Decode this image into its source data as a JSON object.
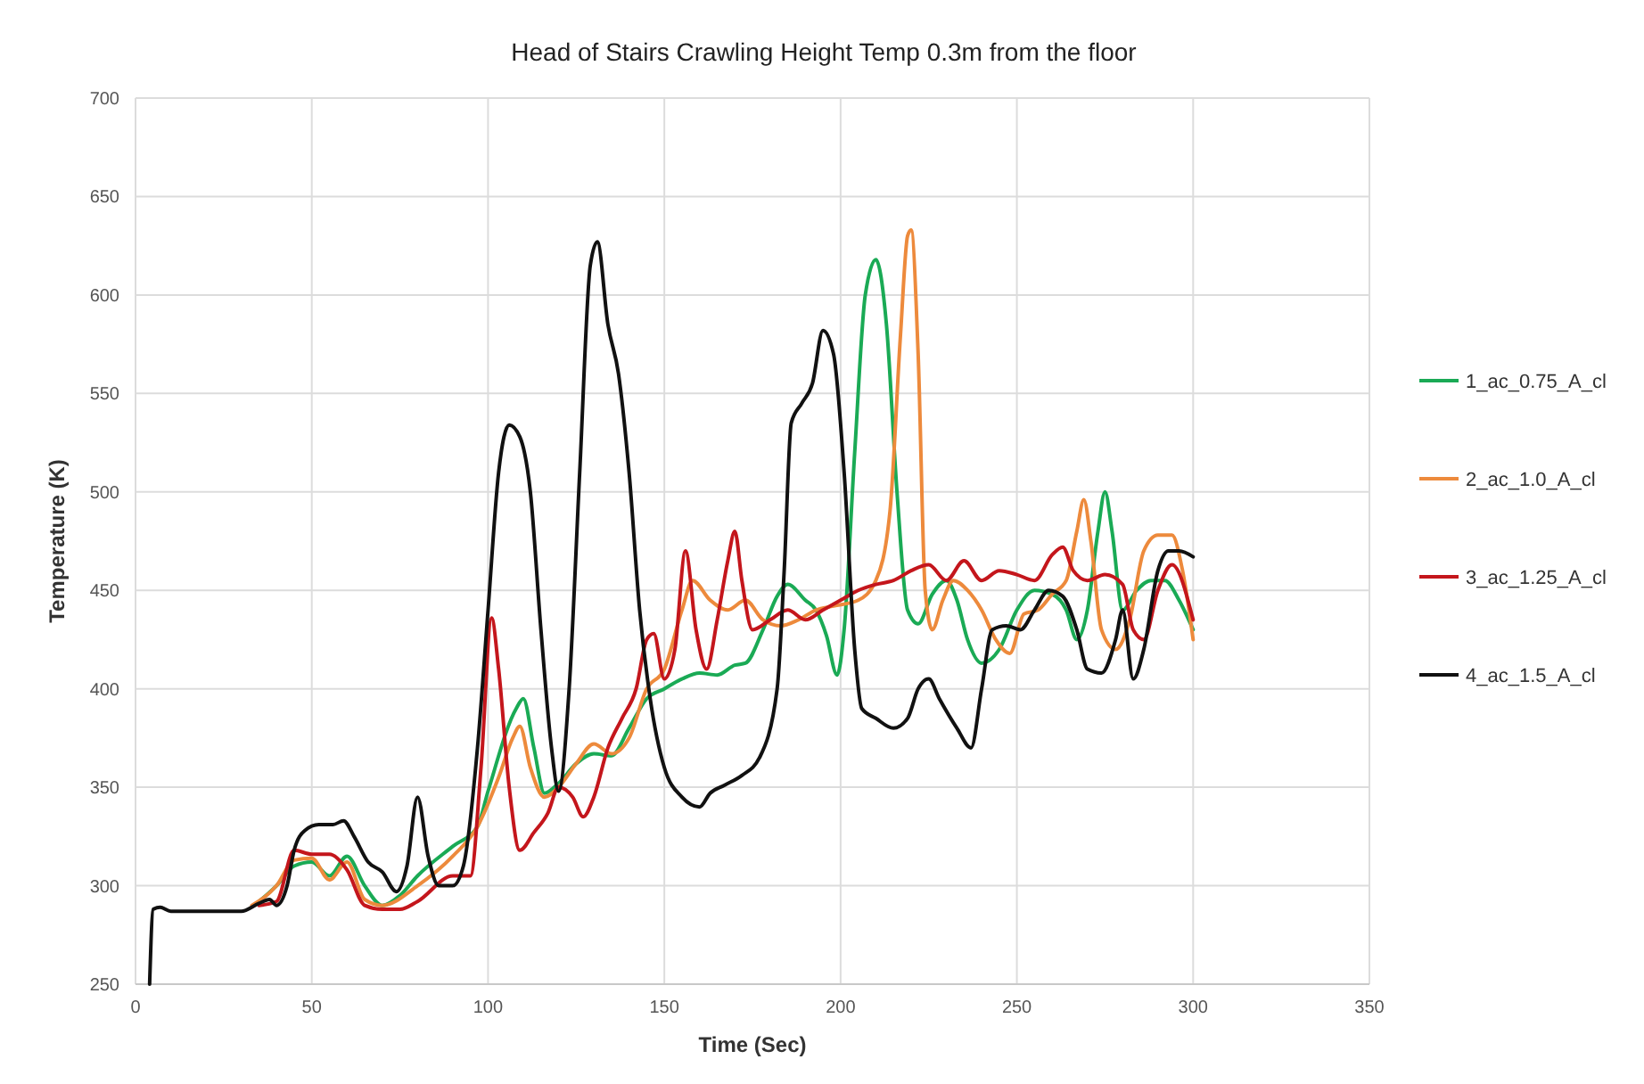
{
  "chart_data": {
    "type": "line",
    "title": "Head of Stairs Crawling Height Temp 0.3m from the floor",
    "xlabel": "Time (Sec)",
    "ylabel": "Temperature (K)",
    "xlim": [
      0,
      350
    ],
    "xticks": [
      0,
      50,
      100,
      150,
      200,
      250,
      300,
      350
    ],
    "ylim": [
      250,
      700
    ],
    "yticks": [
      250,
      300,
      350,
      400,
      450,
      500,
      550,
      600,
      650,
      700
    ],
    "grid": true,
    "legend": "right",
    "marker": "none",
    "line_style": "solid",
    "series": [
      {
        "name": "1_ac_0.75_A_cl",
        "color": "#1aaa55",
        "x": [
          35,
          40,
          45,
          50,
          55,
          60,
          65,
          70,
          75,
          80,
          90,
          97,
          100,
          108,
          110,
          113,
          116,
          120,
          125,
          130,
          135,
          140,
          145,
          150,
          155,
          160,
          165,
          170,
          173,
          178,
          182,
          185,
          190,
          193,
          196,
          199,
          201,
          204,
          207,
          210,
          213,
          216,
          219,
          222,
          226,
          230,
          233,
          236,
          240,
          245,
          250,
          255,
          260,
          264,
          267,
          270,
          273,
          275,
          277,
          280,
          284,
          288,
          292,
          296,
          300
        ],
        "values": [
          292,
          300,
          310,
          312,
          305,
          315,
          300,
          290,
          295,
          305,
          320,
          330,
          348,
          390,
          395,
          370,
          347,
          352,
          362,
          367,
          366,
          380,
          395,
          400,
          405,
          408,
          407,
          412,
          413,
          430,
          447,
          453,
          445,
          440,
          427,
          407,
          430,
          520,
          600,
          618,
          585,
          500,
          440,
          433,
          448,
          455,
          445,
          425,
          413,
          420,
          440,
          450,
          448,
          440,
          425,
          440,
          480,
          500,
          480,
          440,
          450,
          455,
          455,
          445,
          430
        ]
      },
      {
        "name": "2_ac_1.0_A_cl",
        "color": "#ed8a3c",
        "x": [
          33,
          40,
          45,
          50,
          55,
          60,
          65,
          70,
          80,
          90,
          97,
          103,
          107,
          109,
          112,
          116,
          120,
          125,
          130,
          135,
          140,
          145,
          150,
          155,
          158,
          163,
          168,
          173,
          178,
          183,
          188,
          193,
          198,
          205,
          210,
          214,
          217,
          219,
          220,
          222,
          224,
          226,
          229,
          232,
          236,
          240,
          244,
          248,
          252,
          256,
          260,
          264,
          267,
          269,
          271,
          274,
          278,
          282,
          286,
          290,
          294,
          297,
          300
        ],
        "values": [
          290,
          300,
          313,
          314,
          303,
          312,
          293,
          290,
          300,
          315,
          330,
          355,
          375,
          381,
          360,
          345,
          350,
          362,
          372,
          367,
          375,
          400,
          410,
          440,
          455,
          445,
          440,
          445,
          435,
          432,
          435,
          440,
          442,
          445,
          455,
          490,
          580,
          630,
          633,
          570,
          450,
          430,
          445,
          455,
          450,
          440,
          425,
          418,
          438,
          440,
          448,
          455,
          480,
          496,
          475,
          430,
          420,
          435,
          470,
          478,
          478,
          460,
          425
        ]
      },
      {
        "name": "3_ac_1.25_A_cl",
        "color": "#c4161c",
        "x": [
          35,
          40,
          45,
          50,
          55,
          60,
          65,
          70,
          75,
          80,
          90,
          95,
          98,
          101,
          103,
          106,
          109,
          113,
          117,
          120,
          124,
          127,
          130,
          134,
          138,
          142,
          145,
          147,
          150,
          153,
          156,
          159,
          162,
          165,
          168,
          170,
          172,
          175,
          180,
          185,
          190,
          195,
          200,
          205,
          210,
          215,
          220,
          225,
          230,
          235,
          240,
          245,
          250,
          255,
          260,
          263,
          266,
          270,
          275,
          280,
          283,
          286,
          290,
          294,
          300
        ],
        "values": [
          290,
          292,
          318,
          316,
          316,
          308,
          290,
          288,
          288,
          292,
          305,
          305,
          360,
          436,
          410,
          350,
          318,
          327,
          337,
          350,
          345,
          335,
          345,
          370,
          385,
          400,
          425,
          428,
          405,
          420,
          470,
          430,
          410,
          435,
          465,
          480,
          455,
          430,
          435,
          440,
          435,
          440,
          445,
          450,
          453,
          455,
          460,
          463,
          455,
          465,
          455,
          460,
          458,
          455,
          468,
          472,
          460,
          455,
          458,
          453,
          430,
          425,
          450,
          463,
          435
        ]
      },
      {
        "name": "4_ac_1.5_A_cl",
        "color": "#111111",
        "x": [
          4,
          5,
          7,
          10,
          30,
          35,
          38,
          40,
          43,
          45,
          48,
          52,
          56,
          59,
          62,
          66,
          70,
          74,
          77,
          80,
          83,
          86,
          90,
          93,
          97,
          100,
          103,
          106,
          109,
          112,
          115,
          118,
          120,
          123,
          126,
          129,
          131,
          134,
          137,
          140,
          143,
          146,
          150,
          155,
          160,
          163,
          167,
          172,
          177,
          182,
          184,
          186,
          189,
          192,
          195,
          198,
          201,
          204,
          206,
          210,
          215,
          219,
          222,
          225,
          228,
          233,
          237,
          240,
          243,
          247,
          251,
          255,
          259,
          263,
          267,
          270,
          274,
          278,
          280,
          283,
          286,
          290,
          293,
          296,
          300
        ],
        "values": [
          250,
          288,
          289,
          287,
          287,
          291,
          293,
          290,
          300,
          318,
          328,
          331,
          331,
          333,
          325,
          312,
          307,
          297,
          310,
          345,
          315,
          300,
          300,
          310,
          370,
          440,
          510,
          534,
          528,
          500,
          430,
          370,
          348,
          400,
          510,
          615,
          627,
          585,
          560,
          510,
          440,
          395,
          360,
          345,
          340,
          347,
          351,
          356,
          365,
          400,
          460,
          535,
          545,
          555,
          582,
          570,
          510,
          420,
          390,
          385,
          380,
          385,
          400,
          405,
          395,
          380,
          370,
          400,
          430,
          432,
          430,
          440,
          450,
          447,
          430,
          410,
          408,
          425,
          440,
          405,
          420,
          460,
          470,
          470,
          467
        ]
      }
    ]
  }
}
